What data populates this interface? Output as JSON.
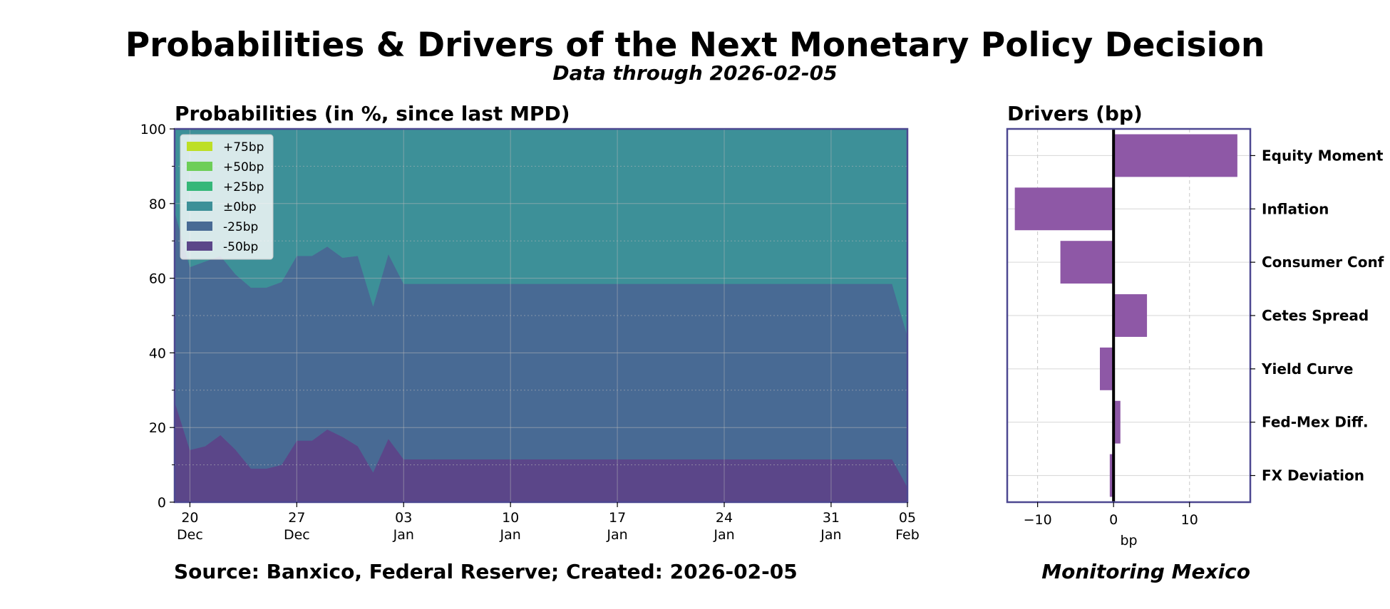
{
  "header": {
    "title": "Probabilities & Drivers of the Next Monetary Policy Decision",
    "subtitle": "Data through 2026-02-05"
  },
  "footer": {
    "source": "Source: Banxico, Federal Reserve; Created: 2026-02-05",
    "brand": "Monitoring Mexico"
  },
  "colors": {
    "frame": "#4d4891",
    "p75": "#bddf26",
    "p50": "#6ece58",
    "p25": "#35b779",
    "p0": "#3d9098",
    "m25": "#486a94",
    "m50": "#5b4689",
    "driver_bar": "#8e58a6"
  },
  "chart_data": [
    {
      "type": "area",
      "stacked": true,
      "title": "Probabilities (in %, since last MPD)",
      "xlabel": "",
      "ylabel": "",
      "x_range": [
        "2025-12-19",
        "2026-02-05"
      ],
      "ylim": [
        0,
        100
      ],
      "y_ticks": [
        0,
        20,
        40,
        60,
        80,
        100
      ],
      "x_ticks": [
        {
          "date": "2025-12-20",
          "day": "20",
          "month": "Dec"
        },
        {
          "date": "2025-12-27",
          "day": "27",
          "month": "Dec"
        },
        {
          "date": "2026-01-03",
          "day": "03",
          "month": "Jan"
        },
        {
          "date": "2026-01-10",
          "day": "10",
          "month": "Jan"
        },
        {
          "date": "2026-01-17",
          "day": "17",
          "month": "Jan"
        },
        {
          "date": "2026-01-24",
          "day": "24",
          "month": "Jan"
        },
        {
          "date": "2026-01-31",
          "day": "31",
          "month": "Jan"
        },
        {
          "date": "2026-02-05",
          "day": "05",
          "month": "Feb"
        }
      ],
      "grid": true,
      "legend_position": "top-left",
      "x": [
        "2025-12-19",
        "2025-12-20",
        "2025-12-21",
        "2025-12-22",
        "2025-12-23",
        "2025-12-24",
        "2025-12-25",
        "2025-12-26",
        "2025-12-27",
        "2025-12-28",
        "2025-12-29",
        "2025-12-30",
        "2025-12-31",
        "2026-01-01",
        "2026-01-02",
        "2026-01-03",
        "2026-01-04",
        "2026-01-05",
        "2026-01-06",
        "2026-01-07",
        "2026-01-08",
        "2026-01-09",
        "2026-01-10",
        "2026-01-11",
        "2026-01-12",
        "2026-01-13",
        "2026-01-14",
        "2026-01-15",
        "2026-01-16",
        "2026-01-17",
        "2026-01-18",
        "2026-01-19",
        "2026-01-20",
        "2026-01-21",
        "2026-01-22",
        "2026-01-23",
        "2026-01-24",
        "2026-01-25",
        "2026-01-26",
        "2026-01-27",
        "2026-01-28",
        "2026-01-29",
        "2026-01-30",
        "2026-01-31",
        "2026-02-01",
        "2026-02-02",
        "2026-02-03",
        "2026-02-04",
        "2026-02-05"
      ],
      "series": [
        {
          "name": "-50bp",
          "color_key": "m50",
          "values": [
            27.0,
            14.0,
            15.0,
            18.0,
            14.0,
            9.0,
            9.0,
            10.0,
            16.5,
            16.5,
            19.5,
            17.5,
            15.0,
            8.0,
            17.0,
            11.5,
            11.5,
            11.5,
            11.5,
            11.5,
            11.5,
            11.5,
            11.5,
            11.5,
            11.5,
            11.5,
            11.5,
            11.5,
            11.5,
            11.5,
            11.5,
            11.5,
            11.5,
            11.5,
            11.5,
            11.5,
            11.5,
            11.5,
            11.5,
            11.5,
            11.5,
            11.5,
            11.5,
            11.5,
            11.5,
            11.5,
            11.5,
            11.5,
            4.0
          ]
        },
        {
          "name": "-25bp",
          "color_key": "m25",
          "values": [
            51.0,
            49.0,
            49.5,
            48.0,
            47.0,
            48.5,
            48.5,
            49.0,
            49.5,
            49.5,
            49.0,
            48.0,
            51.0,
            44.5,
            49.5,
            47.0,
            47.0,
            47.0,
            47.0,
            47.0,
            47.0,
            47.0,
            47.0,
            47.0,
            47.0,
            47.0,
            47.0,
            47.0,
            47.0,
            47.0,
            47.0,
            47.0,
            47.0,
            47.0,
            47.0,
            47.0,
            47.0,
            47.0,
            47.0,
            47.0,
            47.0,
            47.0,
            47.0,
            47.0,
            47.0,
            47.0,
            47.0,
            47.0,
            40.5
          ]
        },
        {
          "name": "±0bp",
          "color_key": "p0",
          "values": [
            22.0,
            37.0,
            35.5,
            34.0,
            39.0,
            42.5,
            42.5,
            41.0,
            34.0,
            34.0,
            31.5,
            34.5,
            34.0,
            47.5,
            33.5,
            41.5,
            41.5,
            41.5,
            41.5,
            41.5,
            41.5,
            41.5,
            41.5,
            41.5,
            41.5,
            41.5,
            41.5,
            41.5,
            41.5,
            41.5,
            41.5,
            41.5,
            41.5,
            41.5,
            41.5,
            41.5,
            41.5,
            41.5,
            41.5,
            41.5,
            41.5,
            41.5,
            41.5,
            41.5,
            41.5,
            41.5,
            41.5,
            41.5,
            55.5
          ]
        },
        {
          "name": "+25bp",
          "color_key": "p25",
          "values": [
            0,
            0,
            0,
            0,
            0,
            0,
            0,
            0,
            0,
            0,
            0,
            0,
            0,
            0,
            0,
            0,
            0,
            0,
            0,
            0,
            0,
            0,
            0,
            0,
            0,
            0,
            0,
            0,
            0,
            0,
            0,
            0,
            0,
            0,
            0,
            0,
            0,
            0,
            0,
            0,
            0,
            0,
            0,
            0,
            0,
            0,
            0,
            0,
            0
          ]
        },
        {
          "name": "+50bp",
          "color_key": "p50",
          "values": [
            0,
            0,
            0,
            0,
            0,
            0,
            0,
            0,
            0,
            0,
            0,
            0,
            0,
            0,
            0,
            0,
            0,
            0,
            0,
            0,
            0,
            0,
            0,
            0,
            0,
            0,
            0,
            0,
            0,
            0,
            0,
            0,
            0,
            0,
            0,
            0,
            0,
            0,
            0,
            0,
            0,
            0,
            0,
            0,
            0,
            0,
            0,
            0,
            0
          ]
        },
        {
          "name": "+75bp",
          "color_key": "p75",
          "values": [
            0,
            0,
            0,
            0,
            0,
            0,
            0,
            0,
            0,
            0,
            0,
            0,
            0,
            0,
            0,
            0,
            0,
            0,
            0,
            0,
            0,
            0,
            0,
            0,
            0,
            0,
            0,
            0,
            0,
            0,
            0,
            0,
            0,
            0,
            0,
            0,
            0,
            0,
            0,
            0,
            0,
            0,
            0,
            0,
            0,
            0,
            0,
            0,
            0
          ]
        }
      ]
    },
    {
      "type": "bar",
      "orientation": "horizontal",
      "title": "Drivers (bp)",
      "xlabel": "bp",
      "xlim": [
        -14,
        18
      ],
      "x_ticks": [
        {
          "value": -10,
          "label": "−10"
        },
        {
          "value": 0,
          "label": "0"
        },
        {
          "value": 10,
          "label": "10"
        }
      ],
      "grid": true,
      "categories": [
        "Equity Momentum",
        "Inflation",
        "Consumer Confidence",
        "Cetes Spread",
        "Yield Curve",
        "Fed-Mex Diff.",
        "FX Deviation"
      ],
      "category_labels_visible": [
        "Equity Moment",
        "Inflation",
        "Consumer Conf",
        "Cetes Spread",
        "Yield Curve",
        "Fed-Mex Diff.",
        "FX Deviation"
      ],
      "values": [
        16.3,
        -13.0,
        -7.0,
        4.4,
        -1.8,
        0.9,
        -0.5
      ]
    }
  ]
}
